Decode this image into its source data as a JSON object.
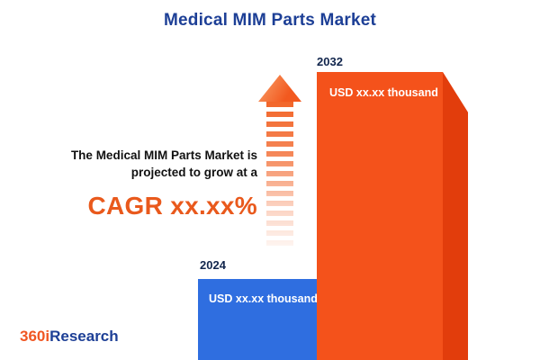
{
  "title": "Medical MIM Parts Market",
  "annotation": {
    "line1": "The Medical MIM Parts Market is",
    "line2": "projected to grow at a",
    "cagr": "CAGR xx.xx%"
  },
  "logo": {
    "part1": "360i",
    "part2": "Research"
  },
  "chart_data": {
    "type": "bar",
    "title": "Medical MIM Parts Market",
    "categories": [
      "2024",
      "2032"
    ],
    "value_labels": [
      "USD xx.xx thousand",
      "USD xx.xx thousand"
    ],
    "values": [
      null,
      null
    ],
    "xlabel": "",
    "ylabel": "",
    "legend": false,
    "axes_visible": false,
    "annotations": [
      "The Medical MIM Parts Market is projected to grow at a CAGR xx.xx%"
    ],
    "colors": {
      "bar_2024": "#2f6ee0",
      "bar_2024_side": "#1d4fae",
      "bar_2032": "#f4521b",
      "bar_2032_side": "#e23d0c",
      "accent_orange": "#e9591c",
      "navy": "#1d3f96",
      "arrow_orange": "#f2662a"
    }
  }
}
